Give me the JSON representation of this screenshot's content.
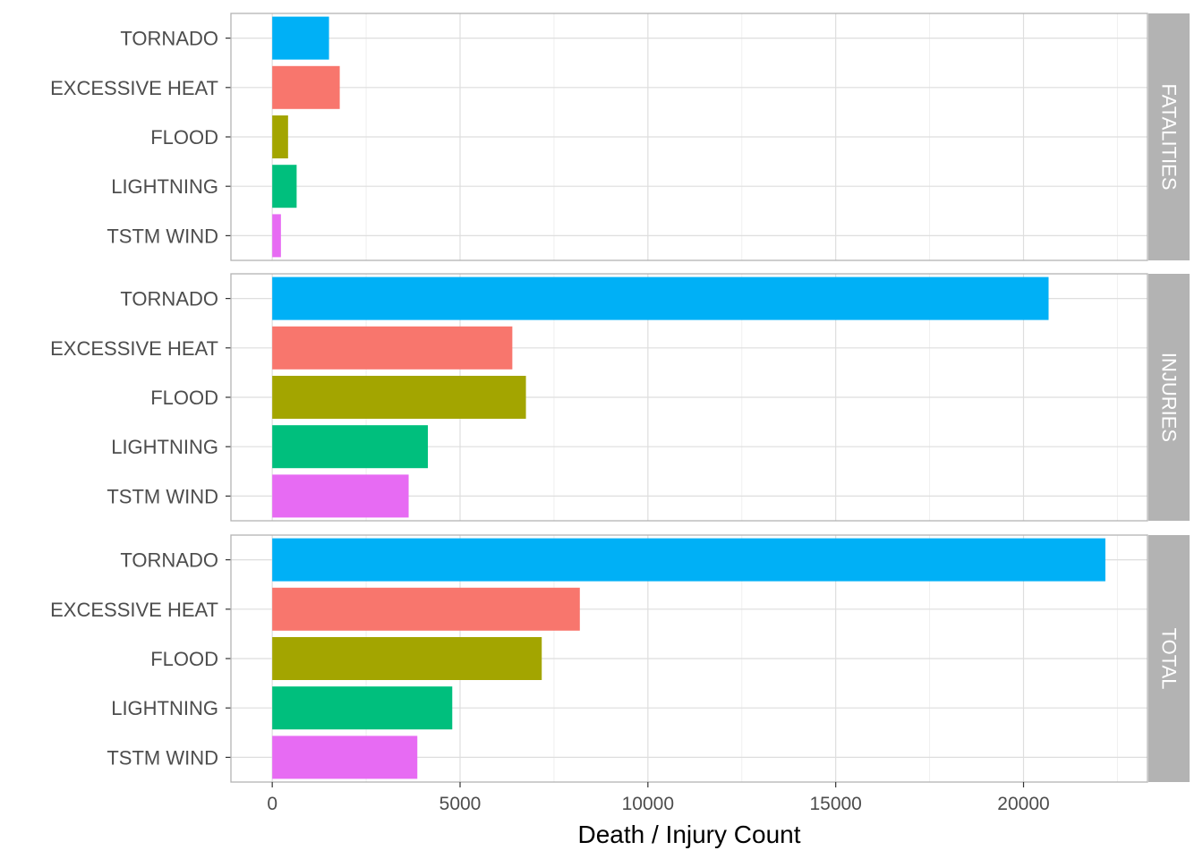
{
  "chart_data": {
    "type": "bar",
    "orientation": "horizontal",
    "facet": "rows",
    "xlabel": "Death / Injury Count",
    "ylabel": "",
    "xlim": [
      -1100,
      23300
    ],
    "x_ticks": [
      0,
      5000,
      10000,
      15000,
      20000
    ],
    "grid": true,
    "categories": [
      "TORNADO",
      "EXCESSIVE HEAT",
      "FLOOD",
      "LIGHTNING",
      "TSTM WIND"
    ],
    "colors": {
      "TORNADO": "#00B0F6",
      "EXCESSIVE HEAT": "#F8766D",
      "FLOOD": "#A3A500",
      "LIGHTNING": "#00BF7D",
      "TSTM WIND": "#E76BF3"
    },
    "panels": [
      {
        "strip": "FATALITIES",
        "values": [
          1511,
          1797,
          421,
          649,
          231
        ]
      },
      {
        "strip": "INJURIES",
        "values": [
          20667,
          6391,
          6753,
          4143,
          3631
        ]
      },
      {
        "strip": "TOTAL",
        "values": [
          22178,
          8188,
          7174,
          4792,
          3862
        ]
      }
    ]
  }
}
